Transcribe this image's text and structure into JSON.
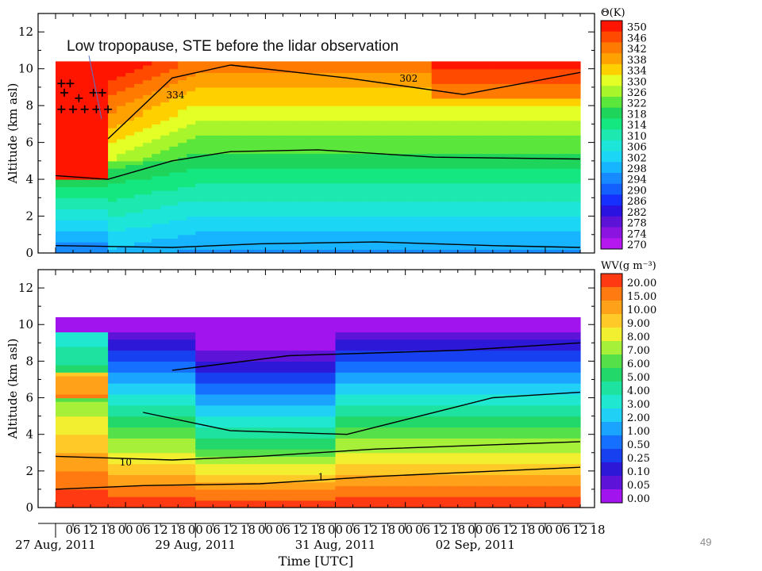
{
  "slide": {
    "annotation": "Low tropopause, STE before the lidar observation",
    "page_number": "49"
  },
  "chart_data": [
    {
      "type": "heatmap",
      "variable": "theta",
      "ylabel": "Altitude (km asl)",
      "ylim": [
        0,
        13
      ],
      "yticks": [
        0,
        2,
        4,
        6,
        8,
        10,
        12
      ],
      "data_top_km": 10.2,
      "colorbar_title": "Θ(K)",
      "colorbar_levels": [
        "350",
        "346",
        "342",
        "338",
        "334",
        "330",
        "326",
        "322",
        "318",
        "314",
        "310",
        "306",
        "302",
        "298",
        "294",
        "290",
        "286",
        "282",
        "278",
        "274",
        "270"
      ],
      "colorbar_colors": [
        "#ff1500",
        "#ff4a00",
        "#ff7a00",
        "#ffa100",
        "#ffd000",
        "#e3ff26",
        "#a8f52c",
        "#5be63c",
        "#1fd45a",
        "#14e680",
        "#1ce8b0",
        "#1de6d8",
        "#1cd6f5",
        "#17b4ff",
        "#178aff",
        "#1460ff",
        "#1530ff",
        "#2a12e0",
        "#5d12d8",
        "#8c14e0",
        "#b418ee"
      ],
      "contours": [
        {
          "label": "334",
          "level": 334
        },
        {
          "label": "302",
          "level": 302
        }
      ]
    },
    {
      "type": "heatmap",
      "variable": "water vapour",
      "ylabel": "Altitude (km asl)",
      "xlabel": "Time [UTC]",
      "ylim": [
        0,
        13
      ],
      "yticks": [
        0,
        2,
        4,
        6,
        8,
        10,
        12
      ],
      "data_top_km": 10.2,
      "colorbar_title": "WV(g m⁻³)",
      "colorbar_levels": [
        "20.00",
        "15.00",
        "10.00",
        "9.00",
        "8.00",
        "7.00",
        "6.00",
        "5.00",
        "4.00",
        "3.00",
        "2.00",
        "1.00",
        "0.50",
        "0.25",
        "0.10",
        "0.05",
        "0.00"
      ],
      "colorbar_colors": [
        "#ff3a12",
        "#ff7a10",
        "#ffa21a",
        "#ffc928",
        "#f2ee30",
        "#a6f03a",
        "#55e04a",
        "#22d86a",
        "#1ee2a0",
        "#20e8d0",
        "#20d0f5",
        "#1aa4ff",
        "#1670ff",
        "#1740f0",
        "#2d18d8",
        "#5e14d8",
        "#a214ee"
      ],
      "contours": [
        {
          "label": "10",
          "level": 10
        },
        {
          "label": "1",
          "level": 1
        }
      ]
    }
  ],
  "time_axis": {
    "start": "2011-08-27 00:00",
    "end": "2011-09-03 12:00",
    "hour_ticks": [
      "06",
      "12",
      "18",
      "00",
      "06",
      "12",
      "18",
      "00",
      "06",
      "12",
      "18",
      "00",
      "06",
      "12",
      "18",
      "00",
      "06",
      "12",
      "18",
      "00",
      "06",
      "12",
      "18",
      "00",
      "06",
      "12",
      "18",
      "00",
      "06",
      "12",
      "18"
    ],
    "date_labels": [
      "27 Aug, 2011",
      "29 Aug, 2011",
      "31 Aug, 2011",
      "02 Sep, 2011"
    ],
    "xlabel": "Time [UTC]"
  }
}
